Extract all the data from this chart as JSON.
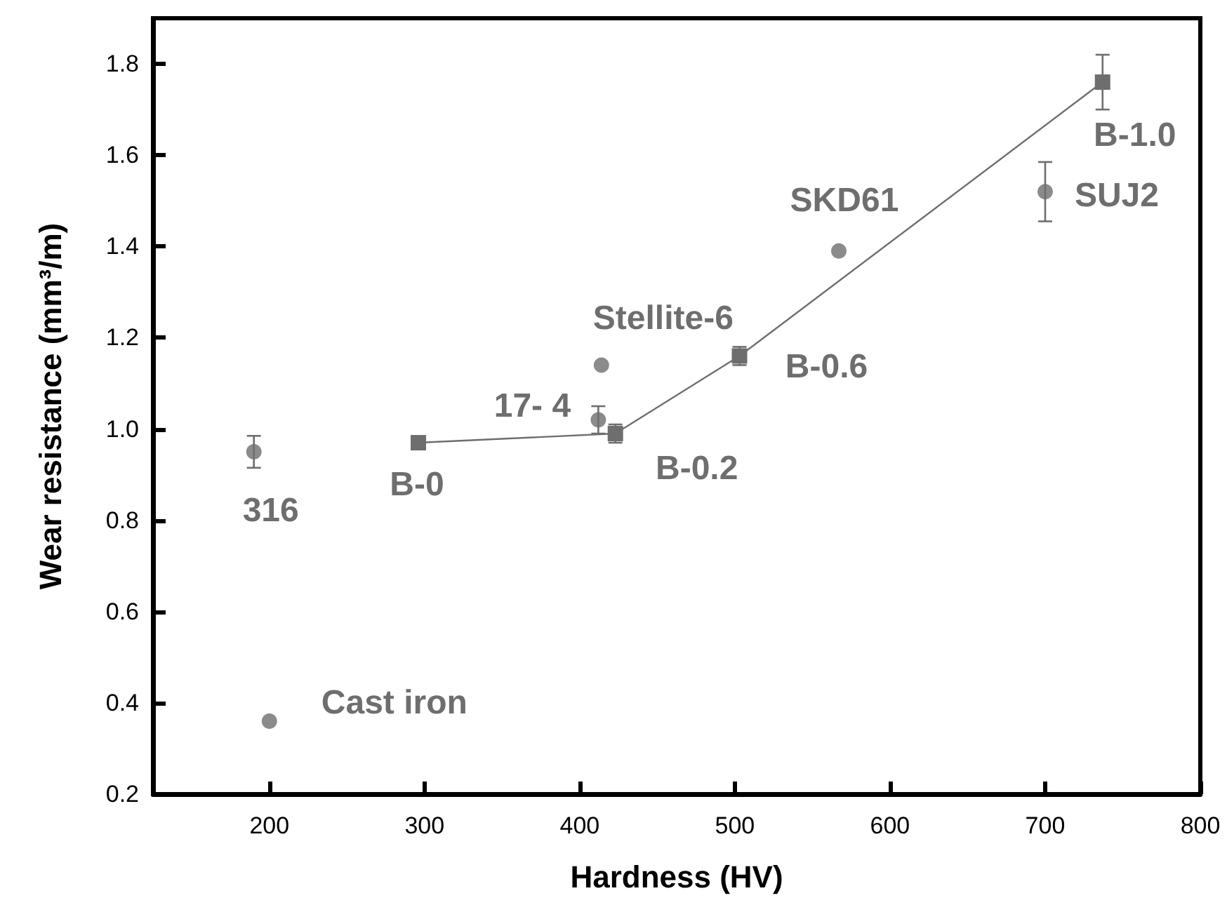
{
  "chart_data": {
    "type": "scatter",
    "xlabel": "Hardness (HV)",
    "ylabel": "Wear resistance (mm³/m)",
    "xlim": [
      125,
      800
    ],
    "xticks": [
      200,
      300,
      400,
      500,
      600,
      700,
      800
    ],
    "ylim": [
      0.2,
      1.9
    ],
    "yticks": [
      0.2,
      0.4,
      0.6,
      0.8,
      {
        "value": 1,
        "label": "1.0"
      },
      1.2,
      1.4,
      1.6,
      1.8
    ],
    "grid": false,
    "series": [
      {
        "marker": "circle",
        "color": "#6e6e6e",
        "x": [
          190,
          200,
          412,
          414,
          567,
          700
        ],
        "values": [
          0.95,
          0.36,
          1.02,
          1.14,
          1.39,
          1.52
        ],
        "errors": [
          0.035,
          null,
          0.03,
          null,
          null,
          0.065
        ]
      },
      {
        "type": "line",
        "marker": "square",
        "color": "#6e6e6e",
        "x": [
          296,
          423,
          503,
          737
        ],
        "values": [
          0.97,
          0.99,
          1.16,
          1.76
        ],
        "errors": [
          null,
          0.02,
          0.02,
          0.06
        ]
      }
    ],
    "annotations": [
      {
        "text": "316",
        "x": 190,
        "y": 0.95
      },
      {
        "text": "Cast iron",
        "x": 200,
        "y": 0.36
      },
      {
        "text": "B-0",
        "x": 296,
        "y": 0.97
      },
      {
        "text": "17- 4",
        "x": 412,
        "y": 1.02
      },
      {
        "text": "Stellite-6",
        "x": 414,
        "y": 1.14
      },
      {
        "text": "B-0.2",
        "x": 423,
        "y": 0.99
      },
      {
        "text": "B-0.6",
        "x": 503,
        "y": 1.16
      },
      {
        "text": "SKD61",
        "x": 567,
        "y": 1.39
      },
      {
        "text": "B-1.0",
        "x": 737,
        "y": 1.76
      },
      {
        "text": "SUJ2",
        "x": 700,
        "y": 1.52
      }
    ]
  }
}
